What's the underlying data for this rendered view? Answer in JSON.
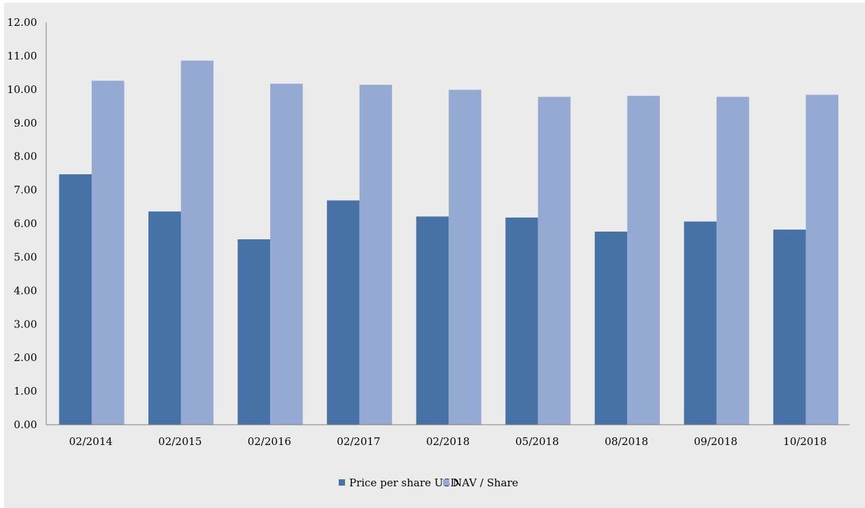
{
  "chart_data": {
    "type": "bar",
    "title": "",
    "xlabel": "",
    "ylabel": "",
    "categories": [
      "02/2014",
      "02/2015",
      "02/2016",
      "02/2017",
      "02/2018",
      "05/2018",
      "08/2018",
      "09/2018",
      "10/2018"
    ],
    "series": [
      {
        "name": "Price per share USD",
        "color": "#4672a6",
        "values": [
          7.47,
          6.36,
          5.53,
          6.69,
          6.21,
          6.18,
          5.76,
          6.06,
          5.82
        ]
      },
      {
        "name": "NAV / Share",
        "color": "#95aad3",
        "values": [
          10.26,
          10.86,
          10.17,
          10.14,
          9.99,
          9.78,
          9.81,
          9.78,
          9.84
        ]
      }
    ],
    "ylim": [
      0,
      12
    ],
    "yticks": [
      "0.00",
      "1.00",
      "2.00",
      "3.00",
      "4.00",
      "5.00",
      "6.00",
      "7.00",
      "8.00",
      "9.00",
      "10.00",
      "11.00",
      "12.00"
    ],
    "grid": false,
    "legend": "bottom",
    "background": "#ebebeb"
  }
}
